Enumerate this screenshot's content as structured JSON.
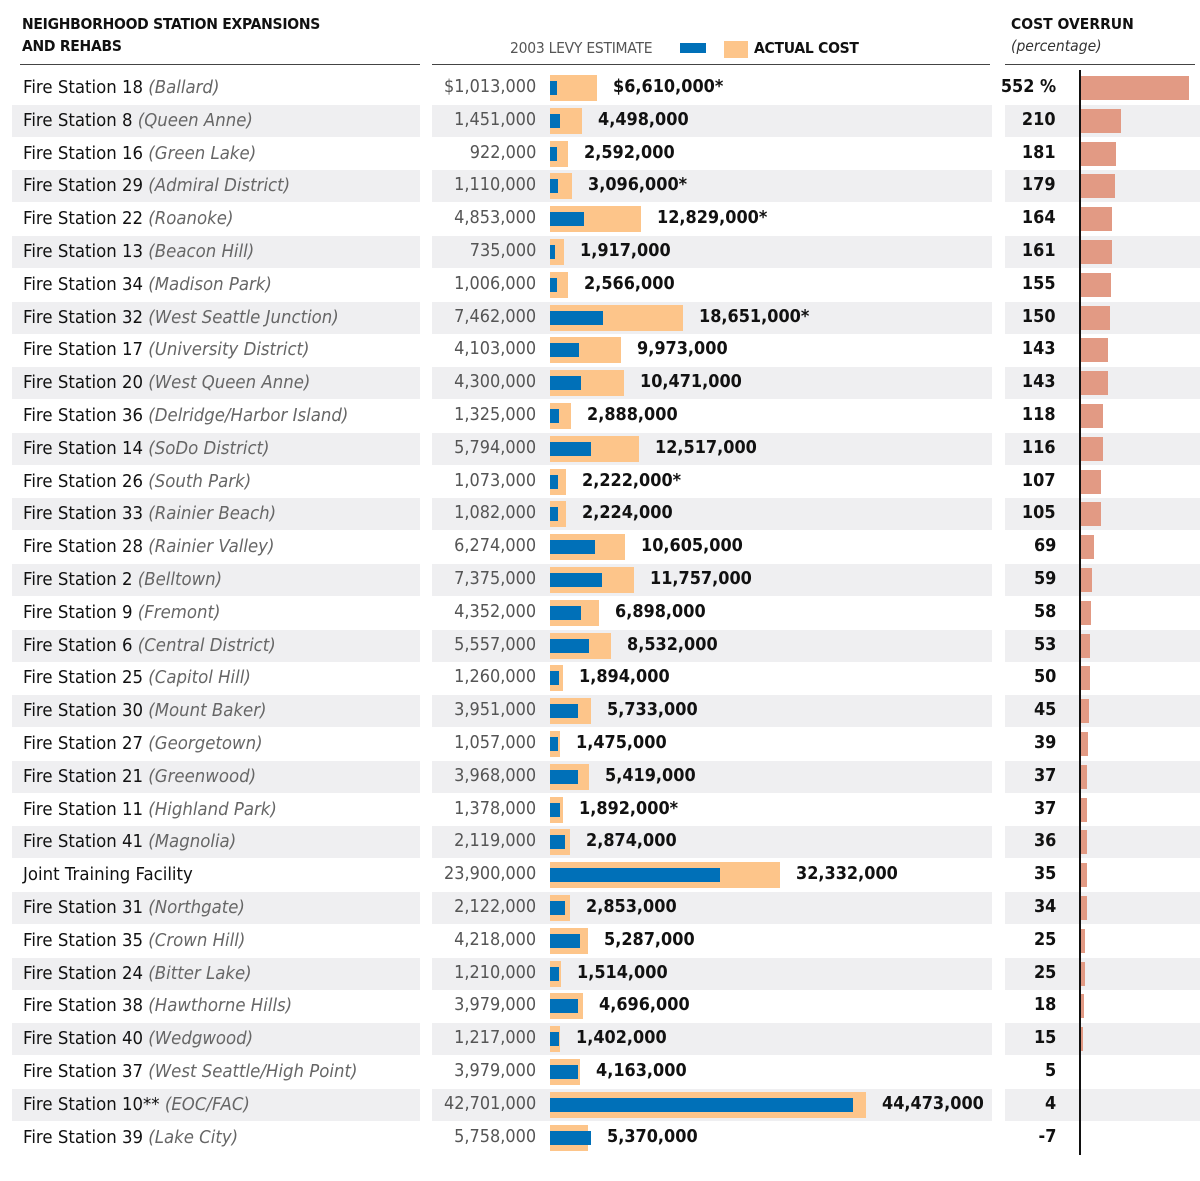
{
  "header": {
    "title_line1": "NEIGHBORHOOD STATION EXPANSIONS",
    "title_line2": "AND REHABS",
    "legend_estimate": "2003 LEVY ESTIMATE",
    "legend_actual": "ACTUAL COST",
    "overrun_title": "COST OVERRUN",
    "overrun_subtitle": "(percentage)"
  },
  "colors": {
    "estimate": "#0070b8",
    "actual": "#fdc58a",
    "overrun": "#e29a84",
    "stripe": "#efeff1"
  },
  "chart_data": {
    "type": "bar",
    "title": "Neighborhood Station Expansions and Rehabs",
    "series_names": [
      "2003 Levy Estimate",
      "Actual Cost",
      "Cost Overrun (percentage)"
    ],
    "units": {
      "cost": "USD",
      "overrun": "percent"
    },
    "rows": [
      {
        "name": "Fire Station 18",
        "hood": "(Ballard)",
        "estimate": 1013000,
        "estimate_label": "$1,013,000",
        "actual": 6610000,
        "actual_label": "$6,610,000*",
        "overrun": 552,
        "overrun_label": "552 %"
      },
      {
        "name": "Fire Station 8",
        "hood": "(Queen Anne)",
        "estimate": 1451000,
        "estimate_label": "1,451,000",
        "actual": 4498000,
        "actual_label": "4,498,000",
        "overrun": 210,
        "overrun_label": "210"
      },
      {
        "name": "Fire Station 16",
        "hood": "(Green Lake)",
        "estimate": 922000,
        "estimate_label": "922,000",
        "actual": 2592000,
        "actual_label": "2,592,000",
        "overrun": 181,
        "overrun_label": "181"
      },
      {
        "name": "Fire Station 29",
        "hood": "(Admiral District)",
        "estimate": 1110000,
        "estimate_label": "1,110,000",
        "actual": 3096000,
        "actual_label": "3,096,000*",
        "overrun": 179,
        "overrun_label": "179"
      },
      {
        "name": "Fire Station 22",
        "hood": "(Roanoke)",
        "estimate": 4853000,
        "estimate_label": "4,853,000",
        "actual": 12829000,
        "actual_label": "12,829,000*",
        "overrun": 164,
        "overrun_label": "164"
      },
      {
        "name": "Fire Station 13",
        "hood": "(Beacon Hill)",
        "estimate": 735000,
        "estimate_label": "735,000",
        "actual": 1917000,
        "actual_label": "1,917,000",
        "overrun": 161,
        "overrun_label": "161"
      },
      {
        "name": "Fire Station 34",
        "hood": "(Madison Park)",
        "estimate": 1006000,
        "estimate_label": "1,006,000",
        "actual": 2566000,
        "actual_label": "2,566,000",
        "overrun": 155,
        "overrun_label": "155"
      },
      {
        "name": "Fire Station 32",
        "hood": "(West Seattle Junction)",
        "estimate": 7462000,
        "estimate_label": "7,462,000",
        "actual": 18651000,
        "actual_label": "18,651,000*",
        "overrun": 150,
        "overrun_label": "150"
      },
      {
        "name": "Fire Station 17",
        "hood": "(University District)",
        "estimate": 4103000,
        "estimate_label": "4,103,000",
        "actual": 9973000,
        "actual_label": "9,973,000",
        "overrun": 143,
        "overrun_label": "143"
      },
      {
        "name": "Fire Station 20",
        "hood": "(West Queen Anne)",
        "estimate": 4300000,
        "estimate_label": "4,300,000",
        "actual": 10471000,
        "actual_label": "10,471,000",
        "overrun": 143,
        "overrun_label": "143"
      },
      {
        "name": "Fire Station 36",
        "hood": "(Delridge/Harbor Island)",
        "estimate": 1325000,
        "estimate_label": "1,325,000",
        "actual": 2888000,
        "actual_label": "2,888,000",
        "overrun": 118,
        "overrun_label": "118"
      },
      {
        "name": "Fire Station 14",
        "hood": "(SoDo District)",
        "estimate": 5794000,
        "estimate_label": "5,794,000",
        "actual": 12517000,
        "actual_label": "12,517,000",
        "overrun": 116,
        "overrun_label": "116"
      },
      {
        "name": "Fire Station 26",
        "hood": "(South Park)",
        "estimate": 1073000,
        "estimate_label": "1,073,000",
        "actual": 2222000,
        "actual_label": "2,222,000*",
        "overrun": 107,
        "overrun_label": "107"
      },
      {
        "name": "Fire Station 33",
        "hood": "(Rainier Beach)",
        "estimate": 1082000,
        "estimate_label": "1,082,000",
        "actual": 2224000,
        "actual_label": "2,224,000",
        "overrun": 105,
        "overrun_label": "105"
      },
      {
        "name": "Fire Station 28",
        "hood": "(Rainier Valley)",
        "estimate": 6274000,
        "estimate_label": "6,274,000",
        "actual": 10605000,
        "actual_label": "10,605,000",
        "overrun": 69,
        "overrun_label": "69"
      },
      {
        "name": "Fire Station 2",
        "hood": "(Belltown)",
        "estimate": 7375000,
        "estimate_label": "7,375,000",
        "actual": 11757000,
        "actual_label": "11,757,000",
        "overrun": 59,
        "overrun_label": "59"
      },
      {
        "name": "Fire Station 9",
        "hood": "(Fremont)",
        "estimate": 4352000,
        "estimate_label": "4,352,000",
        "actual": 6898000,
        "actual_label": "6,898,000",
        "overrun": 58,
        "overrun_label": "58"
      },
      {
        "name": "Fire Station 6",
        "hood": "(Central District)",
        "estimate": 5557000,
        "estimate_label": "5,557,000",
        "actual": 8532000,
        "actual_label": "8,532,000",
        "overrun": 53,
        "overrun_label": "53"
      },
      {
        "name": "Fire Station 25",
        "hood": "(Capitol Hill)",
        "estimate": 1260000,
        "estimate_label": "1,260,000",
        "actual": 1894000,
        "actual_label": "1,894,000",
        "overrun": 50,
        "overrun_label": "50"
      },
      {
        "name": "Fire Station 30",
        "hood": "(Mount Baker)",
        "estimate": 3951000,
        "estimate_label": "3,951,000",
        "actual": 5733000,
        "actual_label": "5,733,000",
        "overrun": 45,
        "overrun_label": "45"
      },
      {
        "name": "Fire Station 27",
        "hood": "(Georgetown)",
        "estimate": 1057000,
        "estimate_label": "1,057,000",
        "actual": 1475000,
        "actual_label": "1,475,000",
        "overrun": 39,
        "overrun_label": "39"
      },
      {
        "name": "Fire Station 21",
        "hood": "(Greenwood)",
        "estimate": 3968000,
        "estimate_label": "3,968,000",
        "actual": 5419000,
        "actual_label": "5,419,000",
        "overrun": 37,
        "overrun_label": "37"
      },
      {
        "name": "Fire Station 11",
        "hood": "(Highland Park)",
        "estimate": 1378000,
        "estimate_label": "1,378,000",
        "actual": 1892000,
        "actual_label": "1,892,000*",
        "overrun": 37,
        "overrun_label": "37"
      },
      {
        "name": "Fire Station 41",
        "hood": "(Magnolia)",
        "estimate": 2119000,
        "estimate_label": "2,119,000",
        "actual": 2874000,
        "actual_label": "2,874,000",
        "overrun": 36,
        "overrun_label": "36"
      },
      {
        "name": "Joint Training Facility",
        "hood": "",
        "estimate": 23900000,
        "estimate_label": "23,900,000",
        "actual": 32332000,
        "actual_label": "32,332,000",
        "overrun": 35,
        "overrun_label": "35"
      },
      {
        "name": "Fire Station 31",
        "hood": "(Northgate)",
        "estimate": 2122000,
        "estimate_label": "2,122,000",
        "actual": 2853000,
        "actual_label": "2,853,000",
        "overrun": 34,
        "overrun_label": "34"
      },
      {
        "name": "Fire Station 35",
        "hood": "(Crown Hill)",
        "estimate": 4218000,
        "estimate_label": "4,218,000",
        "actual": 5287000,
        "actual_label": "5,287,000",
        "overrun": 25,
        "overrun_label": "25"
      },
      {
        "name": "Fire Station 24",
        "hood": "(Bitter Lake)",
        "estimate": 1210000,
        "estimate_label": "1,210,000",
        "actual": 1514000,
        "actual_label": "1,514,000",
        "overrun": 25,
        "overrun_label": "25"
      },
      {
        "name": "Fire Station 38",
        "hood": "(Hawthorne Hills)",
        "estimate": 3979000,
        "estimate_label": "3,979,000",
        "actual": 4696000,
        "actual_label": "4,696,000",
        "overrun": 18,
        "overrun_label": "18"
      },
      {
        "name": "Fire Station 40",
        "hood": "(Wedgwood)",
        "estimate": 1217000,
        "estimate_label": "1,217,000",
        "actual": 1402000,
        "actual_label": "1,402,000",
        "overrun": 15,
        "overrun_label": "15"
      },
      {
        "name": "Fire Station 37",
        "hood": "(West Seattle/High Point)",
        "estimate": 3979000,
        "estimate_label": "3,979,000",
        "actual": 4163000,
        "actual_label": "4,163,000",
        "overrun": 5,
        "overrun_label": "5"
      },
      {
        "name": "Fire Station 10**",
        "hood": " (EOC/FAC)",
        "estimate": 42701000,
        "estimate_label": "42,701,000",
        "actual": 44473000,
        "actual_label": "44,473,000",
        "overrun": 4,
        "overrun_label": "4"
      },
      {
        "name": "Fire Station 39",
        "hood": "(Lake City)",
        "estimate": 5758000,
        "estimate_label": "5,758,000",
        "actual": 5370000,
        "actual_label": "5,370,000",
        "overrun": -7,
        "overrun_label": "-7"
      }
    ]
  }
}
